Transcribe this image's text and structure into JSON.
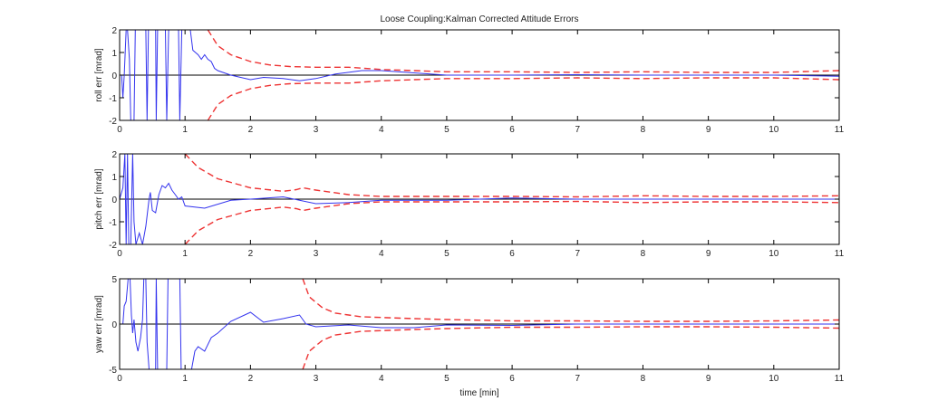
{
  "chart_data": [
    {
      "type": "line",
      "title": "Loose Coupling:Kalman Corrected Attitude Errors",
      "xlabel": "",
      "ylabel": "roll err [mrad]",
      "xlim": [
        0,
        11
      ],
      "ylim": [
        -2,
        2
      ],
      "xticks": [
        0,
        1,
        2,
        3,
        4,
        5,
        6,
        7,
        8,
        9,
        10,
        11
      ],
      "yticks": [
        -2,
        -1,
        0,
        1,
        2
      ],
      "grid": false,
      "colors": {
        "error": "#3333ee",
        "bound": "#ee3333"
      },
      "error": [
        [
          0,
          0
        ],
        [
          0.03,
          0
        ],
        [
          0.05,
          -1
        ],
        [
          0.07,
          0
        ],
        [
          0.1,
          2
        ],
        [
          0.12,
          2
        ],
        [
          0.15,
          0.7
        ],
        [
          0.17,
          -2
        ],
        [
          0.22,
          -2
        ],
        [
          0.24,
          2
        ],
        [
          0.4,
          2
        ],
        [
          0.42,
          -2
        ],
        [
          0.44,
          2
        ],
        [
          0.55,
          2
        ],
        [
          0.56,
          -2
        ],
        [
          0.58,
          2
        ],
        [
          0.7,
          2
        ],
        [
          0.72,
          -2
        ],
        [
          0.75,
          2
        ],
        [
          0.9,
          2
        ],
        [
          0.92,
          -2
        ],
        [
          0.95,
          2
        ],
        [
          1.08,
          2
        ],
        [
          1.12,
          1.1
        ],
        [
          1.2,
          0.9
        ],
        [
          1.25,
          0.7
        ],
        [
          1.3,
          0.9
        ],
        [
          1.35,
          0.7
        ],
        [
          1.4,
          0.6
        ],
        [
          1.45,
          0.3
        ],
        [
          1.5,
          0.2
        ],
        [
          1.7,
          0
        ],
        [
          2.0,
          -0.2
        ],
        [
          2.2,
          -0.1
        ],
        [
          2.5,
          -0.15
        ],
        [
          2.75,
          -0.25
        ],
        [
          3.0,
          -0.15
        ],
        [
          3.3,
          0.05
        ],
        [
          3.7,
          0.2
        ],
        [
          4.0,
          0.2
        ],
        [
          4.5,
          0.1
        ],
        [
          5,
          0
        ],
        [
          6,
          0
        ],
        [
          7,
          0.02
        ],
        [
          8,
          0
        ],
        [
          9,
          0
        ],
        [
          10,
          0
        ],
        [
          11,
          -0.05
        ]
      ],
      "bound": [
        [
          1.35,
          2
        ],
        [
          1.5,
          1.3
        ],
        [
          1.7,
          0.9
        ],
        [
          2,
          0.6
        ],
        [
          2.3,
          0.45
        ],
        [
          2.6,
          0.38
        ],
        [
          3,
          0.35
        ],
        [
          3.5,
          0.35
        ],
        [
          4,
          0.25
        ],
        [
          4.5,
          0.2
        ],
        [
          5,
          0.15
        ],
        [
          6,
          0.15
        ],
        [
          7,
          0.12
        ],
        [
          8,
          0.15
        ],
        [
          9,
          0.12
        ],
        [
          10,
          0.12
        ],
        [
          11,
          0.2
        ]
      ]
    },
    {
      "type": "line",
      "xlabel": "",
      "ylabel": "pitch err [mrad]",
      "xlim": [
        0,
        11
      ],
      "ylim": [
        -2,
        2
      ],
      "xticks": [
        0,
        1,
        2,
        3,
        4,
        5,
        6,
        7,
        8,
        9,
        10,
        11
      ],
      "yticks": [
        -2,
        -1,
        0,
        1,
        2
      ],
      "grid": false,
      "colors": {
        "error": "#3333ee",
        "bound": "#ee3333"
      },
      "error": [
        [
          0,
          0
        ],
        [
          0.05,
          0.5
        ],
        [
          0.08,
          2
        ],
        [
          0.1,
          -2
        ],
        [
          0.12,
          2
        ],
        [
          0.14,
          -2
        ],
        [
          0.17,
          -2
        ],
        [
          0.2,
          2
        ],
        [
          0.22,
          -1
        ],
        [
          0.25,
          -2
        ],
        [
          0.3,
          -1.5
        ],
        [
          0.35,
          -2
        ],
        [
          0.4,
          -1.2
        ],
        [
          0.45,
          0
        ],
        [
          0.47,
          0.3
        ],
        [
          0.5,
          -0.5
        ],
        [
          0.55,
          -0.6
        ],
        [
          0.6,
          0.2
        ],
        [
          0.65,
          0.6
        ],
        [
          0.7,
          0.5
        ],
        [
          0.75,
          0.7
        ],
        [
          0.8,
          0.4
        ],
        [
          0.85,
          0.2
        ],
        [
          0.9,
          0
        ],
        [
          0.95,
          0.1
        ],
        [
          1.0,
          -0.3
        ],
        [
          1.3,
          -0.4
        ],
        [
          1.7,
          -0.05
        ],
        [
          2.0,
          0
        ],
        [
          2.5,
          0.1
        ],
        [
          3.0,
          -0.2
        ],
        [
          3.5,
          -0.15
        ],
        [
          4,
          -0.05
        ],
        [
          5,
          -0.05
        ],
        [
          6,
          0.05
        ],
        [
          7,
          0
        ],
        [
          8,
          0
        ],
        [
          9,
          0
        ],
        [
          11,
          0
        ]
      ],
      "bound": [
        [
          1,
          2
        ],
        [
          1.2,
          1.4
        ],
        [
          1.5,
          0.9
        ],
        [
          2,
          0.5
        ],
        [
          2.5,
          0.35
        ],
        [
          2.7,
          0.42
        ],
        [
          2.8,
          0.5
        ],
        [
          3,
          0.4
        ],
        [
          3.5,
          0.2
        ],
        [
          4,
          0.12
        ],
        [
          5,
          0.12
        ],
        [
          6,
          0.12
        ],
        [
          7,
          0.1
        ],
        [
          8,
          0.15
        ],
        [
          9,
          0.12
        ],
        [
          10,
          0.12
        ],
        [
          11,
          0.15
        ]
      ]
    },
    {
      "type": "line",
      "xlabel": "time [min]",
      "ylabel": "yaw err [mrad]",
      "xlim": [
        0,
        11
      ],
      "ylim": [
        -5,
        5
      ],
      "xticks": [
        0,
        1,
        2,
        3,
        4,
        5,
        6,
        7,
        8,
        9,
        10,
        11
      ],
      "yticks": [
        -5,
        0,
        5
      ],
      "grid": false,
      "colors": {
        "error": "#3333ee",
        "bound": "#ee3333"
      },
      "error": [
        [
          0,
          0
        ],
        [
          0.05,
          0
        ],
        [
          0.07,
          2
        ],
        [
          0.1,
          2.5
        ],
        [
          0.13,
          5
        ],
        [
          0.16,
          5
        ],
        [
          0.18,
          1
        ],
        [
          0.2,
          -1
        ],
        [
          0.22,
          0.5
        ],
        [
          0.25,
          -2
        ],
        [
          0.28,
          -3
        ],
        [
          0.32,
          -1.5
        ],
        [
          0.35,
          0.5
        ],
        [
          0.37,
          5
        ],
        [
          0.4,
          5
        ],
        [
          0.42,
          -2
        ],
        [
          0.45,
          -5
        ],
        [
          0.55,
          -5
        ],
        [
          0.56,
          5
        ],
        [
          0.58,
          -5
        ],
        [
          0.72,
          -5
        ],
        [
          0.74,
          5
        ],
        [
          0.92,
          5
        ],
        [
          0.94,
          -5
        ],
        [
          1.1,
          -5
        ],
        [
          1.15,
          -3
        ],
        [
          1.2,
          -2.5
        ],
        [
          1.3,
          -3
        ],
        [
          1.4,
          -1.5
        ],
        [
          1.5,
          -1
        ],
        [
          1.7,
          0.3
        ],
        [
          2.0,
          1.3
        ],
        [
          2.2,
          0.2
        ],
        [
          2.5,
          0.6
        ],
        [
          2.75,
          1.0
        ],
        [
          2.85,
          0
        ],
        [
          3.0,
          -0.3
        ],
        [
          3.5,
          -0.1
        ],
        [
          4,
          -0.4
        ],
        [
          4.5,
          -0.4
        ],
        [
          5,
          -0.1
        ],
        [
          6,
          -0.15
        ],
        [
          7,
          0
        ],
        [
          8,
          0
        ],
        [
          9,
          0
        ],
        [
          11,
          0
        ]
      ],
      "bound": [
        [
          2.8,
          5
        ],
        [
          2.9,
          3
        ],
        [
          3.1,
          1.8
        ],
        [
          3.3,
          1.2
        ],
        [
          3.7,
          0.8
        ],
        [
          4.5,
          0.6
        ],
        [
          5,
          0.5
        ],
        [
          6,
          0.35
        ],
        [
          7,
          0.35
        ],
        [
          8,
          0.3
        ],
        [
          9,
          0.3
        ],
        [
          10,
          0.35
        ],
        [
          11,
          0.45
        ]
      ]
    }
  ]
}
